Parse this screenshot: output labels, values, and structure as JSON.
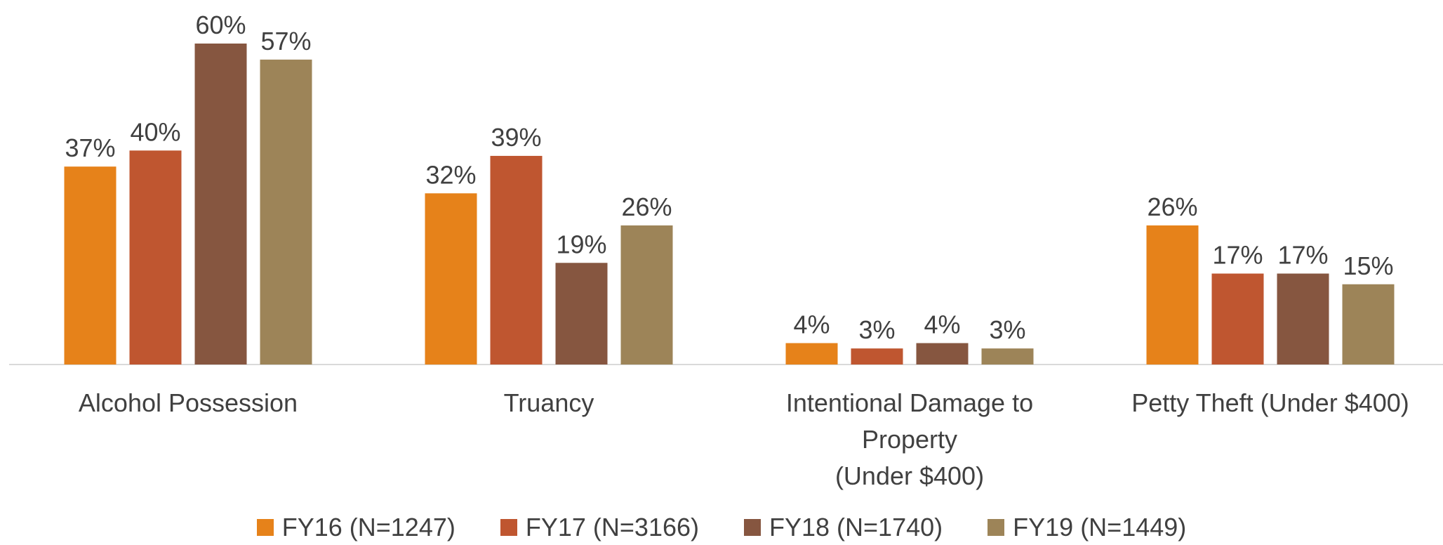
{
  "chart_data": {
    "type": "bar",
    "categories": [
      "Alcohol Possession",
      "Truancy",
      "Intentional Damage to Property\n(Under $400)",
      "Petty Theft (Under $400)"
    ],
    "series": [
      {
        "name": "FY16 (N=1247)",
        "color": "#e6821a",
        "values": [
          37,
          32,
          4,
          26
        ],
        "value_labels": [
          "37%",
          "32%",
          "4%",
          "26%"
        ]
      },
      {
        "name": "FY17 (N=3166)",
        "color": "#bf5630",
        "values": [
          40,
          39,
          3,
          17
        ],
        "value_labels": [
          "40%",
          "39%",
          "3%",
          "17%"
        ]
      },
      {
        "name": "FY18 (N=1740)",
        "color": "#865640",
        "values": [
          60,
          19,
          4,
          17
        ],
        "value_labels": [
          "60%",
          "19%",
          "4%",
          "17%"
        ]
      },
      {
        "name": "FY19 (N=1449)",
        "color": "#9d8458",
        "values": [
          57,
          26,
          3,
          15
        ],
        "value_labels": [
          "57%",
          "26%",
          "3%",
          "15%"
        ]
      }
    ],
    "legend": "bottom"
  }
}
